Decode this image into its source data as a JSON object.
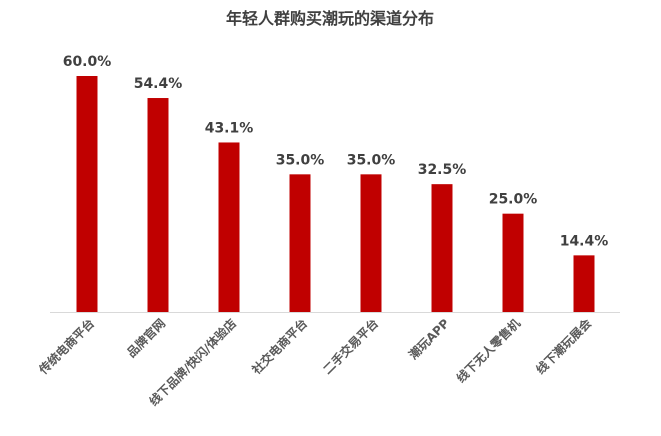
{
  "chart_data": {
    "type": "bar",
    "title": "年轻人群购买潮玩的渠道分布",
    "categories": [
      "传统电商平台",
      "品牌官网",
      "线下品牌/快闪/体验店",
      "社交电商平台",
      "二手交易平台",
      "潮玩APP",
      "线下无人零售机",
      "线下潮玩展会"
    ],
    "values": [
      60.0,
      54.4,
      43.1,
      35.0,
      35.0,
      32.5,
      25.0,
      14.4
    ],
    "value_labels": [
      "60.0%",
      "54.4%",
      "43.1%",
      "35.0%",
      "35.0%",
      "32.5%",
      "25.0%",
      "14.4%"
    ],
    "color": "#c00000"
  }
}
